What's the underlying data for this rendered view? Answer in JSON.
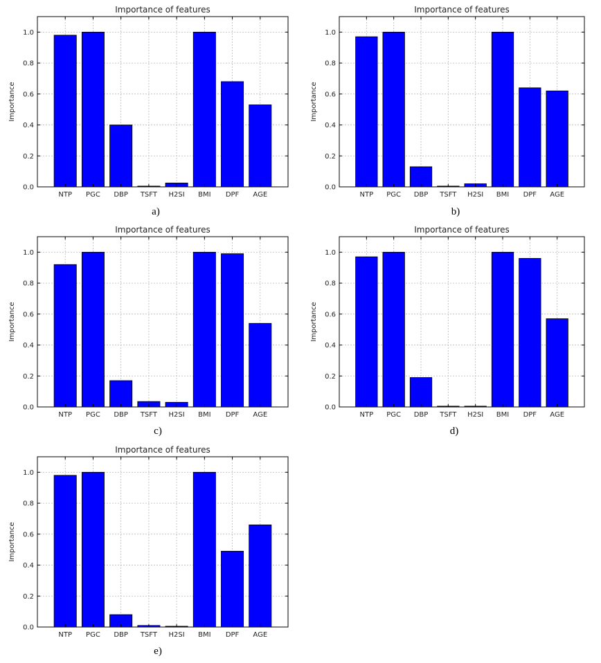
{
  "chart_data": [
    {
      "type": "bar",
      "title": "Importance of features",
      "ylabel": "Importance",
      "caption": "a)",
      "categories": [
        "NTP",
        "PGC",
        "DBP",
        "TSFT",
        "H2SI",
        "BMI",
        "DPF",
        "AGE"
      ],
      "values": [
        0.98,
        1.0,
        0.4,
        0.005,
        0.025,
        1.0,
        0.68,
        0.53
      ],
      "ylim": [
        0,
        1.1
      ],
      "yticks": [
        "0.0",
        "0.2",
        "0.4",
        "0.6",
        "0.8",
        "1.0"
      ],
      "grid": true,
      "color": "#0000ff"
    },
    {
      "type": "bar",
      "title": "Importance of features",
      "ylabel": "Importance",
      "caption": "b)",
      "categories": [
        "NTP",
        "PGC",
        "DBP",
        "TSFT",
        "H2SI",
        "BMI",
        "DPF",
        "AGE"
      ],
      "values": [
        0.97,
        1.0,
        0.13,
        0.005,
        0.02,
        1.0,
        0.64,
        0.62
      ],
      "ylim": [
        0,
        1.1
      ],
      "yticks": [
        "0.0",
        "0.2",
        "0.4",
        "0.6",
        "0.8",
        "1.0"
      ],
      "grid": true,
      "color": "#0000ff"
    },
    {
      "type": "bar",
      "title": "Importance of features",
      "ylabel": "Importance",
      "caption": "c)",
      "categories": [
        "NTP",
        "PGC",
        "DBP",
        "TSFT",
        "H2SI",
        "BMI",
        "DPF",
        "AGE"
      ],
      "values": [
        0.92,
        1.0,
        0.17,
        0.035,
        0.03,
        1.0,
        0.99,
        0.54
      ],
      "ylim": [
        0,
        1.1
      ],
      "yticks": [
        "0.0",
        "0.2",
        "0.4",
        "0.6",
        "0.8",
        "1.0"
      ],
      "grid": true,
      "color": "#0000ff"
    },
    {
      "type": "bar",
      "title": "Importance of features",
      "ylabel": "Importance",
      "caption": "d)",
      "categories": [
        "NTP",
        "PGC",
        "DBP",
        "TSFT",
        "H2SI",
        "BMI",
        "DPF",
        "AGE"
      ],
      "values": [
        0.97,
        1.0,
        0.19,
        0.005,
        0.005,
        1.0,
        0.96,
        0.57
      ],
      "ylim": [
        0,
        1.1
      ],
      "yticks": [
        "0.0",
        "0.2",
        "0.4",
        "0.6",
        "0.8",
        "1.0"
      ],
      "grid": true,
      "color": "#0000ff"
    },
    {
      "type": "bar",
      "title": "Importance of features",
      "ylabel": "Importance",
      "caption": "e)",
      "categories": [
        "NTP",
        "PGC",
        "DBP",
        "TSFT",
        "H2SI",
        "BMI",
        "DPF",
        "AGE"
      ],
      "values": [
        0.98,
        1.0,
        0.08,
        0.01,
        0.005,
        1.0,
        0.49,
        0.66
      ],
      "ylim": [
        0,
        1.1
      ],
      "yticks": [
        "0.0",
        "0.2",
        "0.4",
        "0.6",
        "0.8",
        "1.0"
      ],
      "grid": true,
      "color": "#0000ff"
    }
  ]
}
